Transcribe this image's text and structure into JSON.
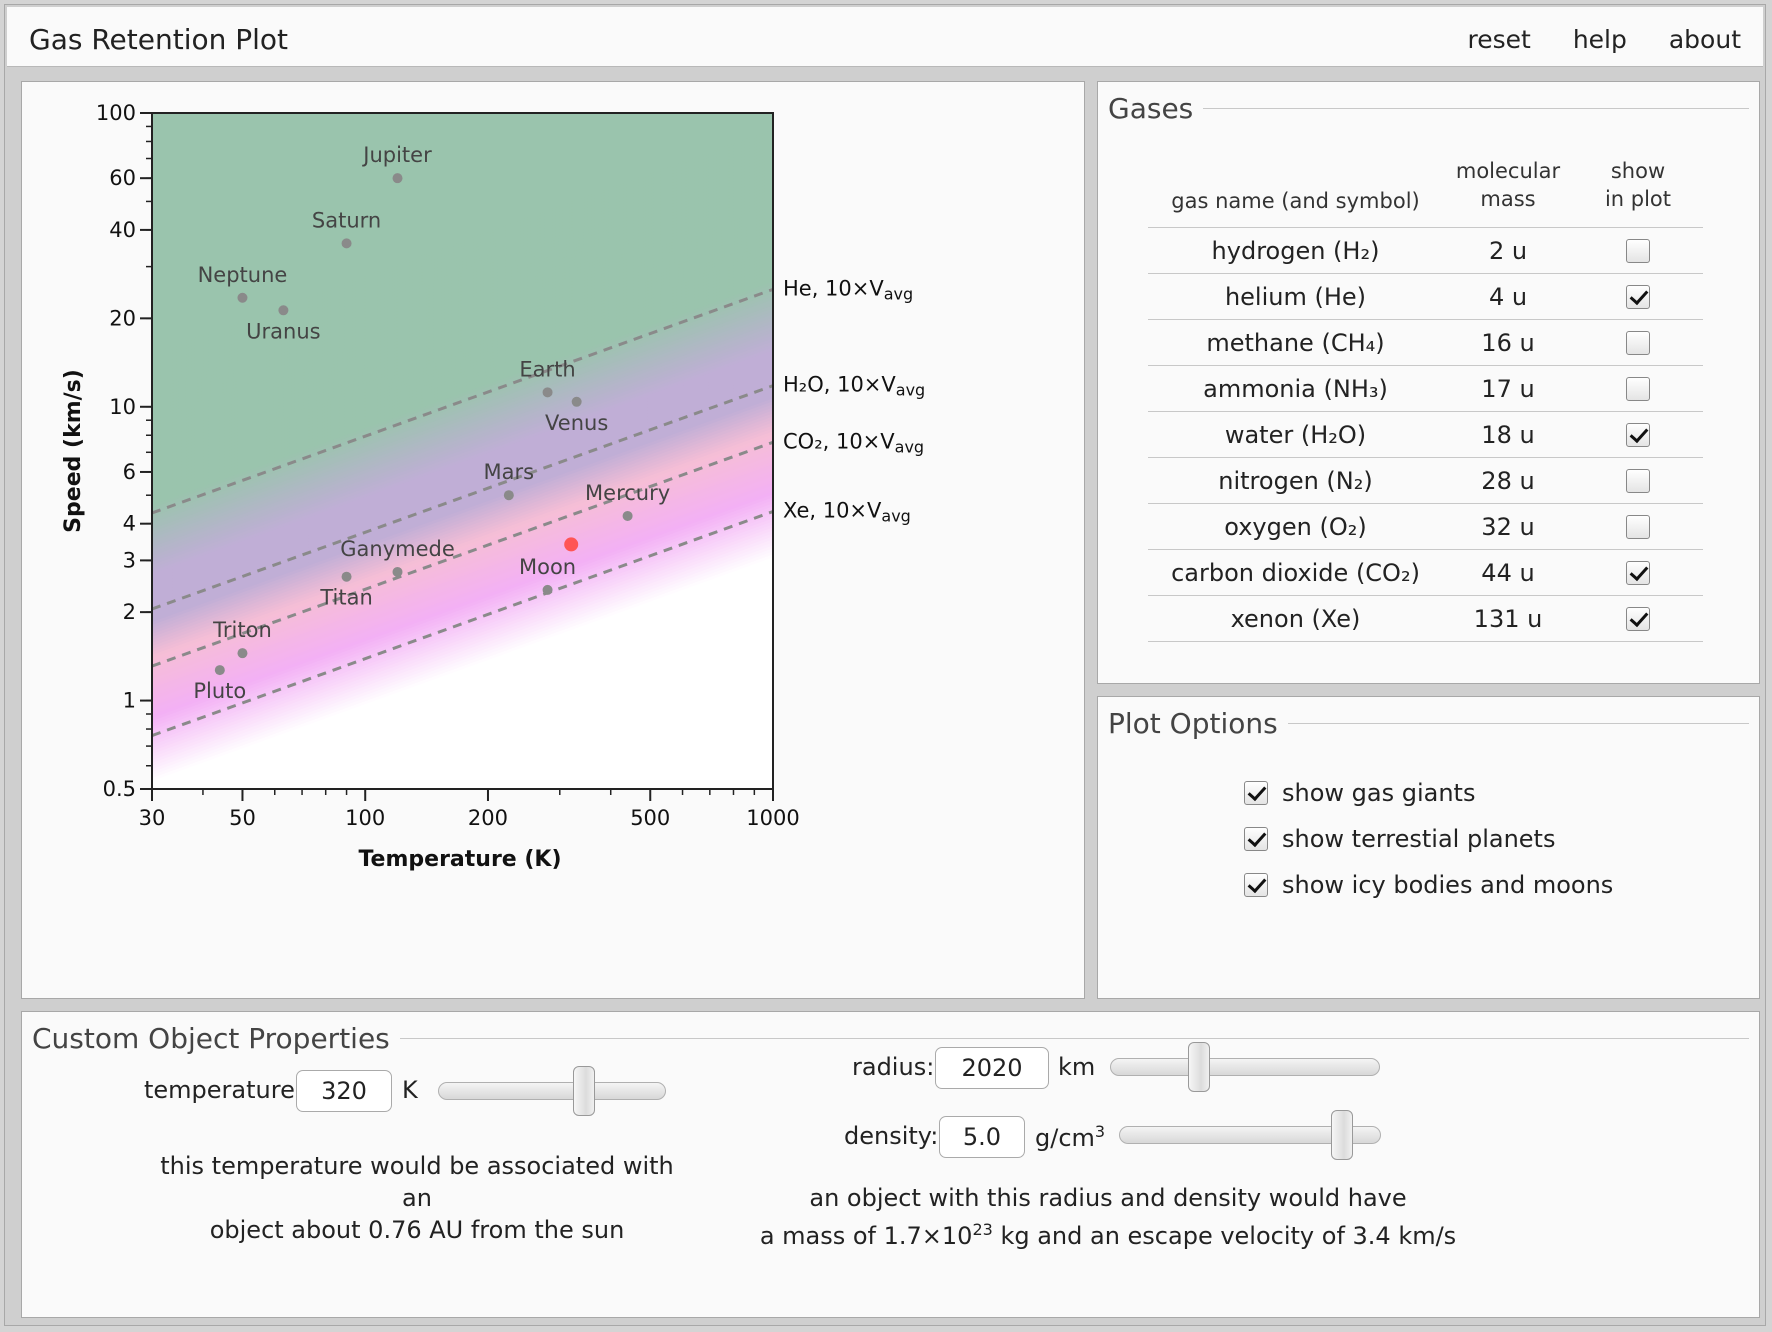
{
  "app": {
    "title": "Gas Retention Plot",
    "menu": [
      "reset",
      "help",
      "about"
    ]
  },
  "plot": {
    "xlabel": "Temperature (K)",
    "ylabel": "Speed (km/s)",
    "x_ticks": [
      "30",
      "50",
      "100",
      "200",
      "500",
      "1000"
    ],
    "y_ticks": [
      "0.5",
      "1",
      "2",
      "3",
      "4",
      "6",
      "10",
      "20",
      "40",
      "60",
      "100"
    ],
    "gas_lines": [
      {
        "gas": "He",
        "label": "He, 10×V",
        "sub": "avg"
      },
      {
        "gas": "H₂O",
        "label": "H₂O, 10×V",
        "sub": "avg"
      },
      {
        "gas": "CO₂",
        "label": "CO₂, 10×V",
        "sub": "avg"
      },
      {
        "gas": "Xe",
        "label": "Xe, 10×V",
        "sub": "avg"
      }
    ],
    "bodies": [
      {
        "name": "Jupiter"
      },
      {
        "name": "Saturn"
      },
      {
        "name": "Neptune"
      },
      {
        "name": "Uranus"
      },
      {
        "name": "Earth"
      },
      {
        "name": "Venus"
      },
      {
        "name": "Mars"
      },
      {
        "name": "Mercury"
      },
      {
        "name": "Ganymede"
      },
      {
        "name": "Titan"
      },
      {
        "name": "Moon"
      },
      {
        "name": "Triton"
      },
      {
        "name": "Pluto"
      }
    ],
    "custom_point_color": "#ff5555",
    "colors": {
      "green": "#9ac4ad",
      "purple": "#c0aed6",
      "pink": "#f6bed6",
      "magenta": "#f3b0f5",
      "line": "#8a8a8a",
      "point": "#8a8a8a"
    }
  },
  "chart_data": {
    "type": "scatter",
    "xlabel": "Temperature (K)",
    "ylabel": "Speed (km/s)",
    "x_scale": "log",
    "y_scale": "log",
    "xlim": [
      30,
      1000
    ],
    "ylim": [
      0.5,
      100
    ],
    "grid": false,
    "points": [
      {
        "name": "Jupiter",
        "x": 120,
        "y": 60
      },
      {
        "name": "Saturn",
        "x": 90,
        "y": 36
      },
      {
        "name": "Neptune",
        "x": 50,
        "y": 23.5
      },
      {
        "name": "Uranus",
        "x": 63,
        "y": 21.3
      },
      {
        "name": "Earth",
        "x": 280,
        "y": 11.2
      },
      {
        "name": "Venus",
        "x": 330,
        "y": 10.4
      },
      {
        "name": "Mars",
        "x": 225,
        "y": 5.0
      },
      {
        "name": "Mercury",
        "x": 440,
        "y": 4.25
      },
      {
        "name": "Ganymede",
        "x": 120,
        "y": 2.74
      },
      {
        "name": "Titan",
        "x": 90,
        "y": 2.64
      },
      {
        "name": "Moon",
        "x": 280,
        "y": 2.38
      },
      {
        "name": "Triton",
        "x": 50,
        "y": 1.45
      },
      {
        "name": "Pluto",
        "x": 44,
        "y": 1.27
      },
      {
        "name": "",
        "x": 320,
        "y": 3.4
      }
    ],
    "lines": [
      {
        "name": "He, 10×Vavg",
        "points": [
          [
            30,
            4.35
          ],
          [
            1000,
            25.1
          ]
        ]
      },
      {
        "name": "H₂O, 10×Vavg",
        "points": [
          [
            30,
            2.05
          ],
          [
            1000,
            11.8
          ]
        ]
      },
      {
        "name": "CO₂, 10×Vavg",
        "points": [
          [
            30,
            1.31
          ],
          [
            1000,
            7.57
          ]
        ]
      },
      {
        "name": "Xe, 10×Vavg",
        "points": [
          [
            30,
            0.76
          ],
          [
            1000,
            4.4
          ]
        ]
      }
    ]
  },
  "gases": {
    "title": "Gases",
    "headers": {
      "name": "gas name (and symbol)",
      "mass_1": "molecular",
      "mass_2": "mass",
      "show_1": "show",
      "show_2": "in plot"
    },
    "rows": [
      {
        "name": "hydrogen (H₂)",
        "mass": "2 u",
        "checked": false
      },
      {
        "name": "helium (He)",
        "mass": "4 u",
        "checked": true
      },
      {
        "name": "methane (CH₄)",
        "mass": "16 u",
        "checked": false
      },
      {
        "name": "ammonia (NH₃)",
        "mass": "17 u",
        "checked": false
      },
      {
        "name": "water (H₂O)",
        "mass": "18 u",
        "checked": true
      },
      {
        "name": "nitrogen (N₂)",
        "mass": "28 u",
        "checked": false
      },
      {
        "name": "oxygen (O₂)",
        "mass": "32 u",
        "checked": false
      },
      {
        "name": "carbon dioxide (CO₂)",
        "mass": "44 u",
        "checked": true
      },
      {
        "name": "xenon (Xe)",
        "mass": "131 u",
        "checked": true
      }
    ]
  },
  "plot_options": {
    "title": "Plot Options",
    "options": [
      {
        "label": "show gas giants",
        "checked": true
      },
      {
        "label": "show terrestial planets",
        "checked": true
      },
      {
        "label": "show icy bodies and moons",
        "checked": true
      }
    ]
  },
  "custom": {
    "title": "Custom Object Properties",
    "temperature": {
      "label": "temperature:",
      "value": "320",
      "unit": "K",
      "slider_fraction": 0.64
    },
    "temp_note_1": "this temperature would be associated with an",
    "temp_note_2": "object about 0.76 AU from the sun",
    "radius": {
      "label": "radius:",
      "value": "2020",
      "unit": "km",
      "slider_fraction": 0.33
    },
    "density": {
      "label": "density:",
      "value": "5.0",
      "unit": "g/cm",
      "unit_sup": "3",
      "slider_fraction": 0.85
    },
    "mass_note_1": "an object with this radius and density would have",
    "mass_note_2_a": "a mass of 1.7×10",
    "mass_note_2_sup": "23",
    "mass_note_2_b": " kg and an escape velocity of 3.4 km/s"
  }
}
